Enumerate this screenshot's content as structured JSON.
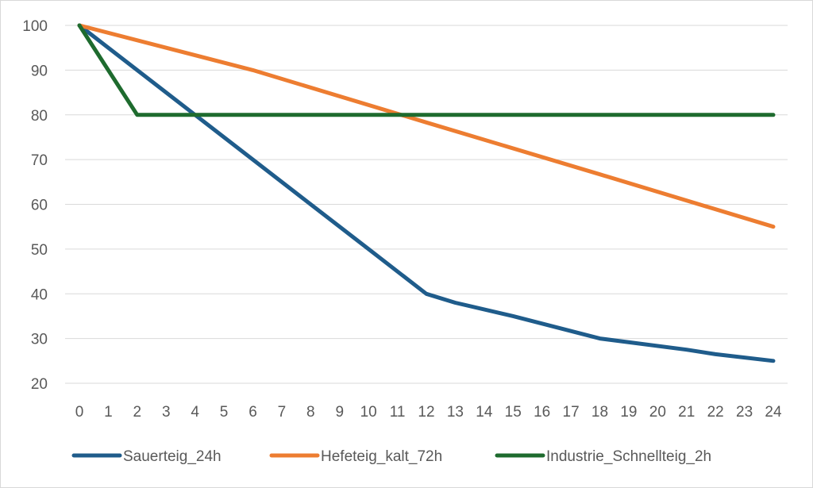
{
  "chart_data": {
    "type": "line",
    "title": "",
    "xlabel": "",
    "ylabel": "",
    "x": [
      0,
      1,
      2,
      3,
      4,
      5,
      6,
      7,
      8,
      9,
      10,
      11,
      12,
      13,
      14,
      15,
      16,
      17,
      18,
      19,
      20,
      21,
      22,
      23,
      24
    ],
    "ylim": [
      20,
      100
    ],
    "yticks": [
      20,
      30,
      40,
      50,
      60,
      70,
      80,
      90,
      100
    ],
    "grid": "horizontal",
    "legend": "bottom",
    "series": [
      {
        "name": "Sauerteig_24h",
        "color": "#1f5c8b",
        "x": [
          0,
          2,
          4,
          6,
          8,
          10,
          12,
          13,
          15,
          18,
          21,
          22,
          24
        ],
        "values": [
          100,
          90,
          80,
          70,
          60,
          50,
          40,
          38,
          35,
          30,
          27.5,
          26.5,
          25
        ]
      },
      {
        "name": "Hefeteig_kalt_72h",
        "color": "#ed7d31",
        "x": [
          0,
          6,
          12,
          18,
          24
        ],
        "values": [
          100,
          90,
          78.3,
          66.7,
          55
        ]
      },
      {
        "name": "Industrie_Schnellteig_2h",
        "color": "#1e6b2e",
        "x": [
          0,
          2,
          24
        ],
        "values": [
          100,
          80,
          80
        ]
      }
    ]
  }
}
